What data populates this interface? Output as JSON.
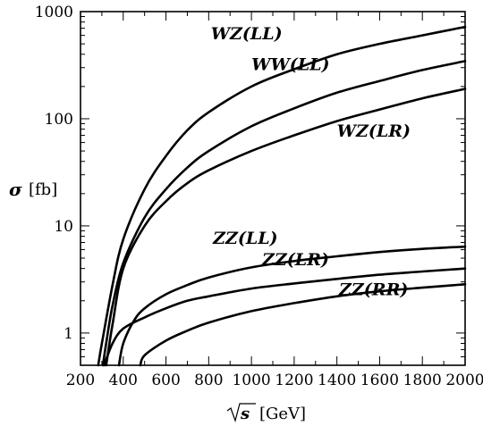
{
  "chart_data": {
    "type": "line",
    "xlim": [
      200,
      2000
    ],
    "ylim": [
      0.5,
      1000
    ],
    "yscale": "log",
    "grid": false,
    "legend": "none",
    "xticks": [
      200,
      400,
      600,
      800,
      1000,
      1200,
      1400,
      1600,
      1800,
      2000
    ],
    "yticks": [
      1,
      10,
      100,
      1000
    ],
    "ytick_labels": [
      "1",
      "10",
      "100",
      "1000"
    ],
    "xlabel": {
      "sym": "s",
      "unit": "[GeV]"
    },
    "ylabel": {
      "sym": "σ",
      "unit": "[fb]"
    },
    "series": [
      {
        "name": "WZ(LL)",
        "x": [
          283,
          300,
          350,
          400,
          500,
          600,
          700,
          800,
          1000,
          1200,
          1400,
          1600,
          1800,
          2000
        ],
        "y": [
          0.5,
          0.8,
          2.8,
          7.5,
          22,
          45,
          78,
          115,
          200,
          290,
          400,
          500,
          600,
          720
        ]
      },
      {
        "name": "WW(LL)",
        "x": [
          305,
          320,
          350,
          400,
          500,
          600,
          700,
          800,
          1000,
          1200,
          1400,
          1600,
          1800,
          2000
        ],
        "y": [
          0.5,
          0.8,
          1.8,
          4.5,
          12,
          22,
          35,
          50,
          85,
          125,
          175,
          225,
          285,
          345
        ]
      },
      {
        "name": "WZ(LR)",
        "x": [
          320,
          350,
          400,
          500,
          600,
          700,
          800,
          1000,
          1200,
          1400,
          1600,
          1800,
          2000
        ],
        "y": [
          0.5,
          1.2,
          4.0,
          10,
          17,
          25,
          33,
          50,
          70,
          95,
          122,
          155,
          190
        ]
      },
      {
        "name": "ZZ(LL)",
        "x": [
          380,
          400,
          450,
          500,
          600,
          700,
          800,
          1000,
          1200,
          1400,
          1600,
          1800,
          2000
        ],
        "y": [
          0.5,
          0.8,
          1.3,
          1.7,
          2.3,
          2.8,
          3.3,
          4.1,
          4.7,
          5.2,
          5.7,
          6.1,
          6.4
        ]
      },
      {
        "name": "ZZ(LR)",
        "x": [
          310,
          350,
          400,
          500,
          600,
          700,
          800,
          1000,
          1200,
          1400,
          1600,
          1800,
          2000
        ],
        "y": [
          0.5,
          0.8,
          1.1,
          1.4,
          1.7,
          2.0,
          2.2,
          2.6,
          2.9,
          3.2,
          3.5,
          3.75,
          4.0
        ]
      },
      {
        "name": "ZZ(RR)",
        "x": [
          480,
          500,
          600,
          700,
          800,
          1000,
          1200,
          1400,
          1600,
          1800,
          2000
        ],
        "y": [
          0.5,
          0.62,
          0.85,
          1.05,
          1.25,
          1.6,
          1.9,
          2.2,
          2.45,
          2.65,
          2.85
        ]
      }
    ]
  }
}
